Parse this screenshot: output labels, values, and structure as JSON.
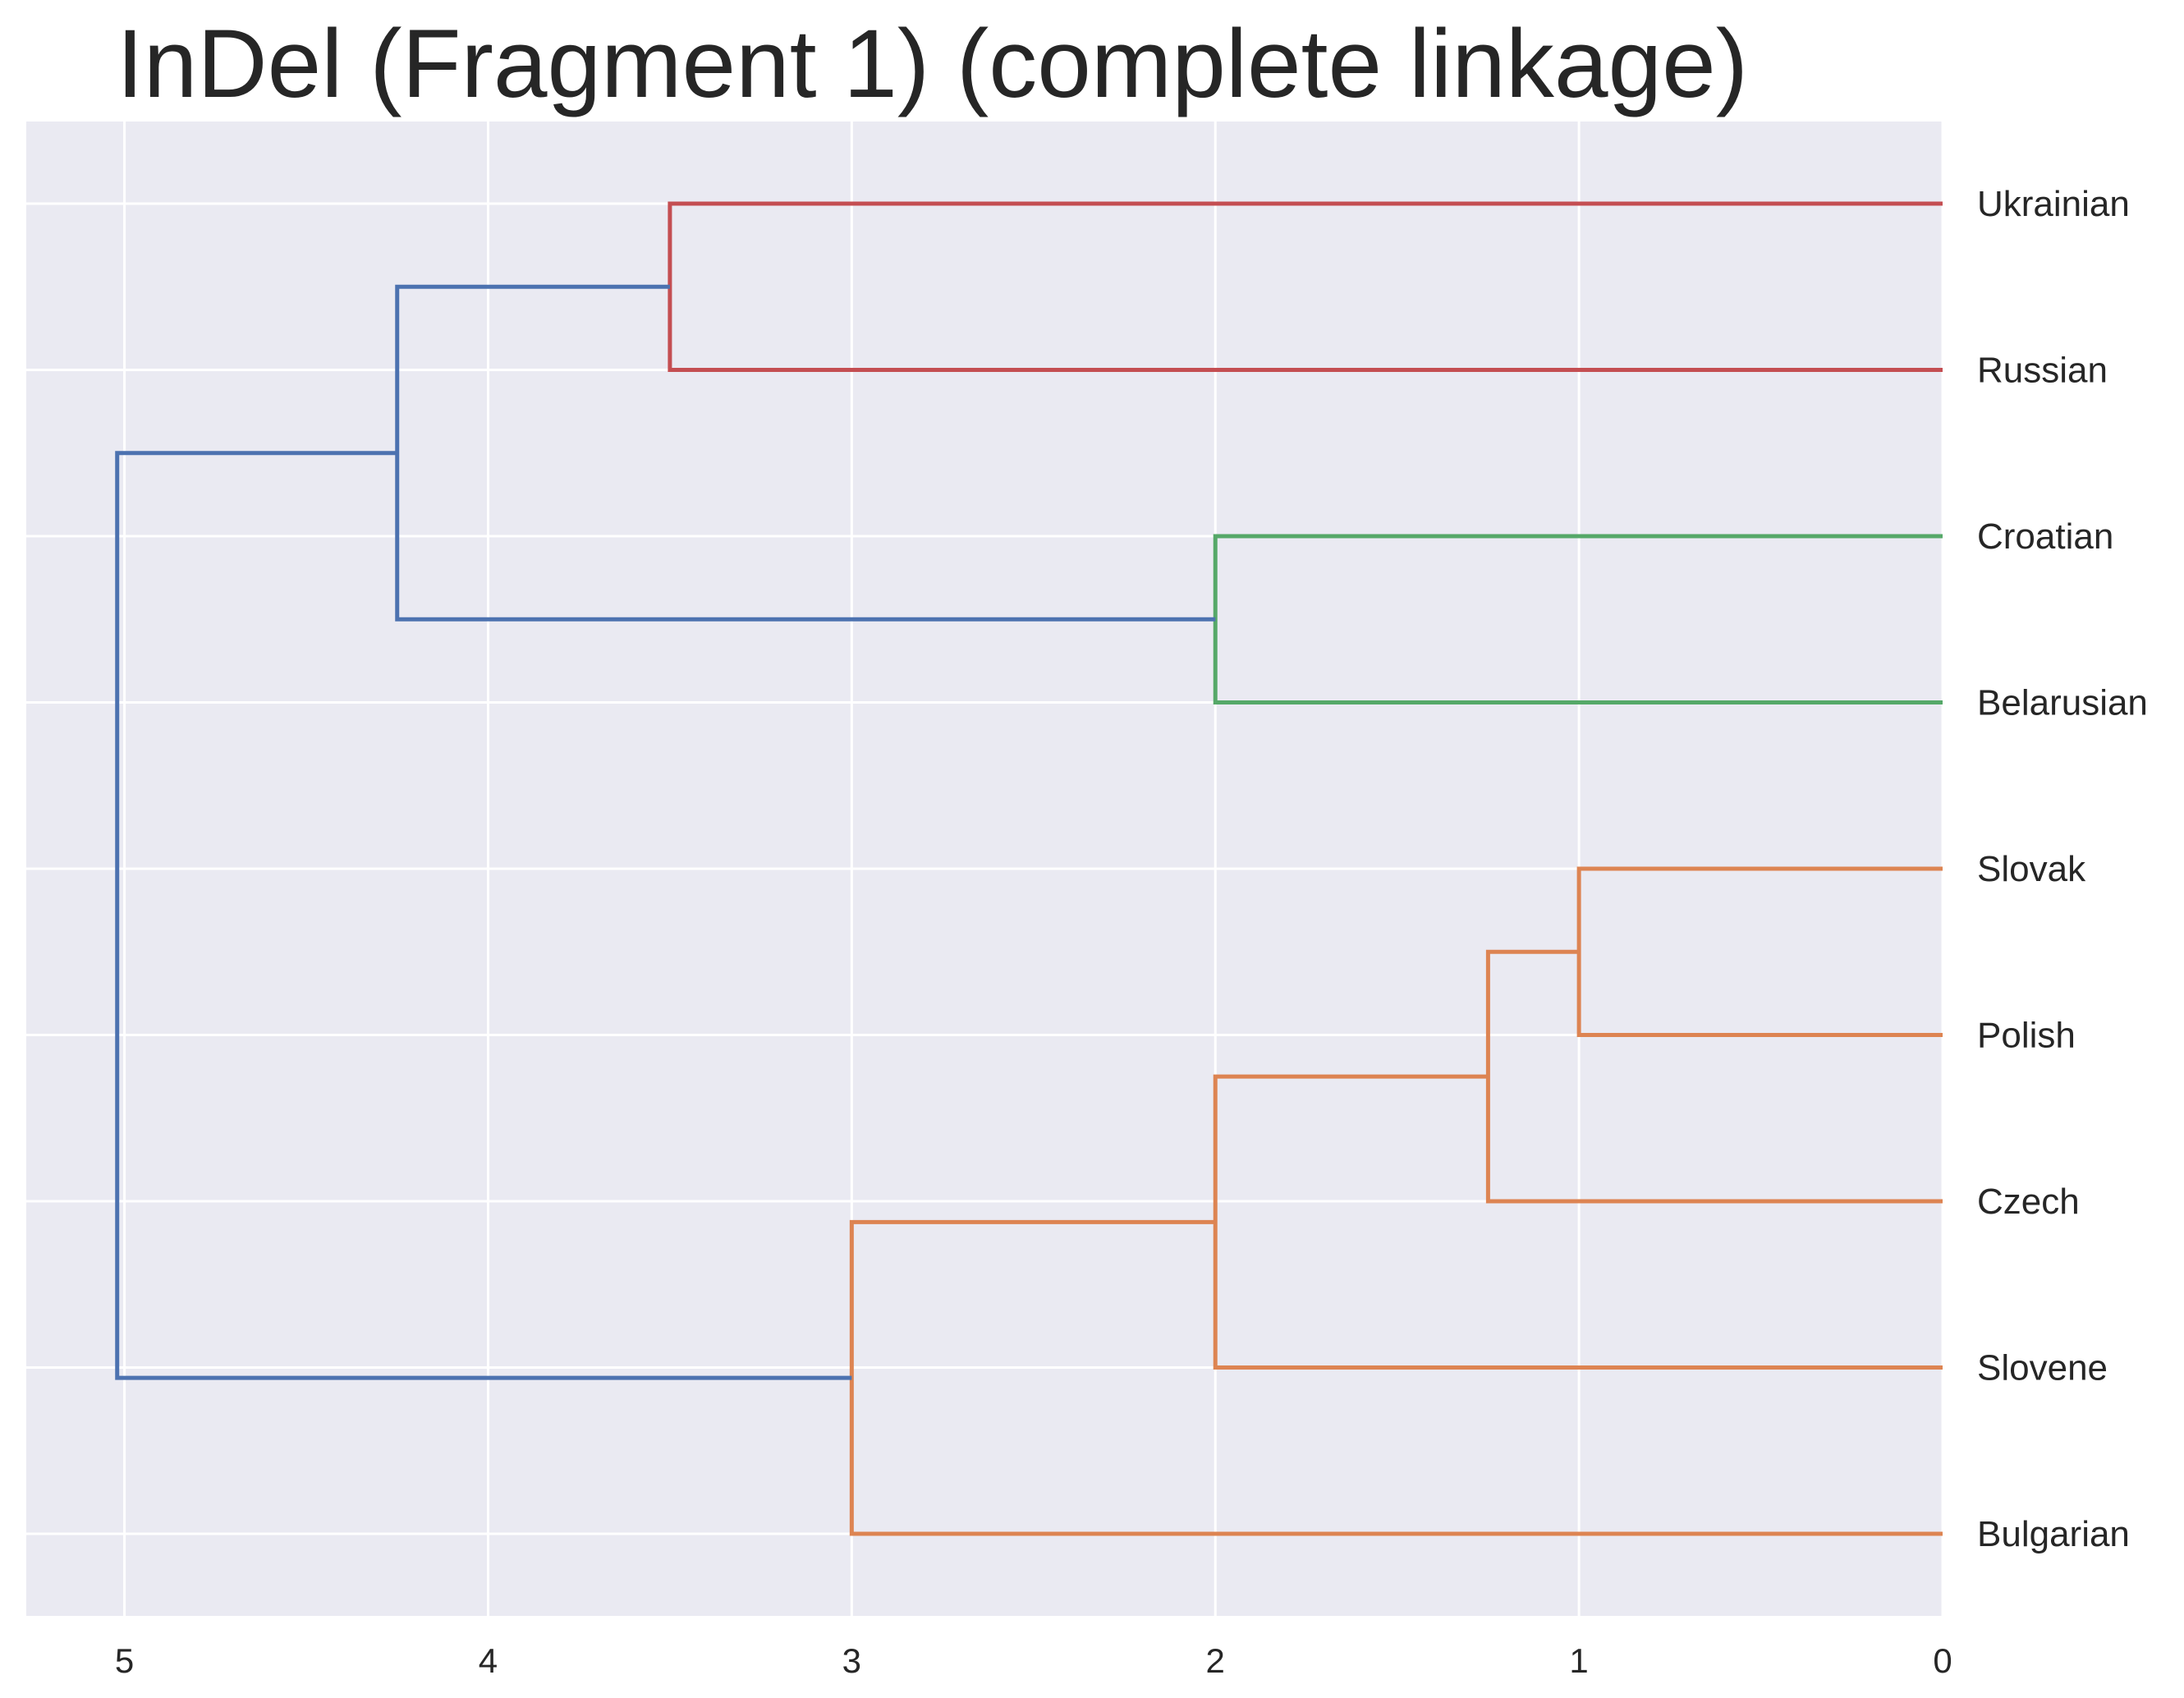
{
  "chart_data": {
    "type": "dendrogram",
    "title": "InDel (Fragment 1) (complete linkage)",
    "orientation": "left",
    "xlabel": "",
    "ylabel": "",
    "xlim": [
      5.27,
      0
    ],
    "xticks": [
      5,
      4,
      3,
      2,
      1,
      0
    ],
    "grid": true,
    "background_color": "#eaeaf2",
    "grid_color": "#ffffff",
    "leaves": [
      "Ukrainian",
      "Russian",
      "Croatian",
      "Belarusian",
      "Slovak",
      "Polish",
      "Czech",
      "Slovene",
      "Bulgarian"
    ],
    "merges": [
      {
        "id": "ukr_rus",
        "children": [
          "Ukrainian",
          "Russian"
        ],
        "height": 3.5,
        "color": "#c44e52"
      },
      {
        "id": "cro_bel",
        "children": [
          "Croatian",
          "Belarusian"
        ],
        "height": 2.0,
        "color": "#55a868"
      },
      {
        "id": "slk_pol",
        "children": [
          "Slovak",
          "Polish"
        ],
        "height": 1.0,
        "color": "#dd8452"
      },
      {
        "id": "slk_pol_cze",
        "children": [
          "slk_pol",
          "Czech"
        ],
        "height": 1.25,
        "color": "#dd8452"
      },
      {
        "id": "west_slv",
        "children": [
          "slk_pol_cze",
          "Slovene"
        ],
        "height": 2.0,
        "color": "#dd8452"
      },
      {
        "id": "south_bul",
        "children": [
          "west_slv",
          "Bulgarian"
        ],
        "height": 3.0,
        "color": "#dd8452"
      },
      {
        "id": "east",
        "children": [
          "ukr_rus",
          "cro_bel"
        ],
        "height": 4.25,
        "color": "#4c72b0"
      },
      {
        "id": "root",
        "children": [
          "east",
          "south_bul"
        ],
        "height": 5.02,
        "color": "#4c72b0"
      }
    ]
  }
}
